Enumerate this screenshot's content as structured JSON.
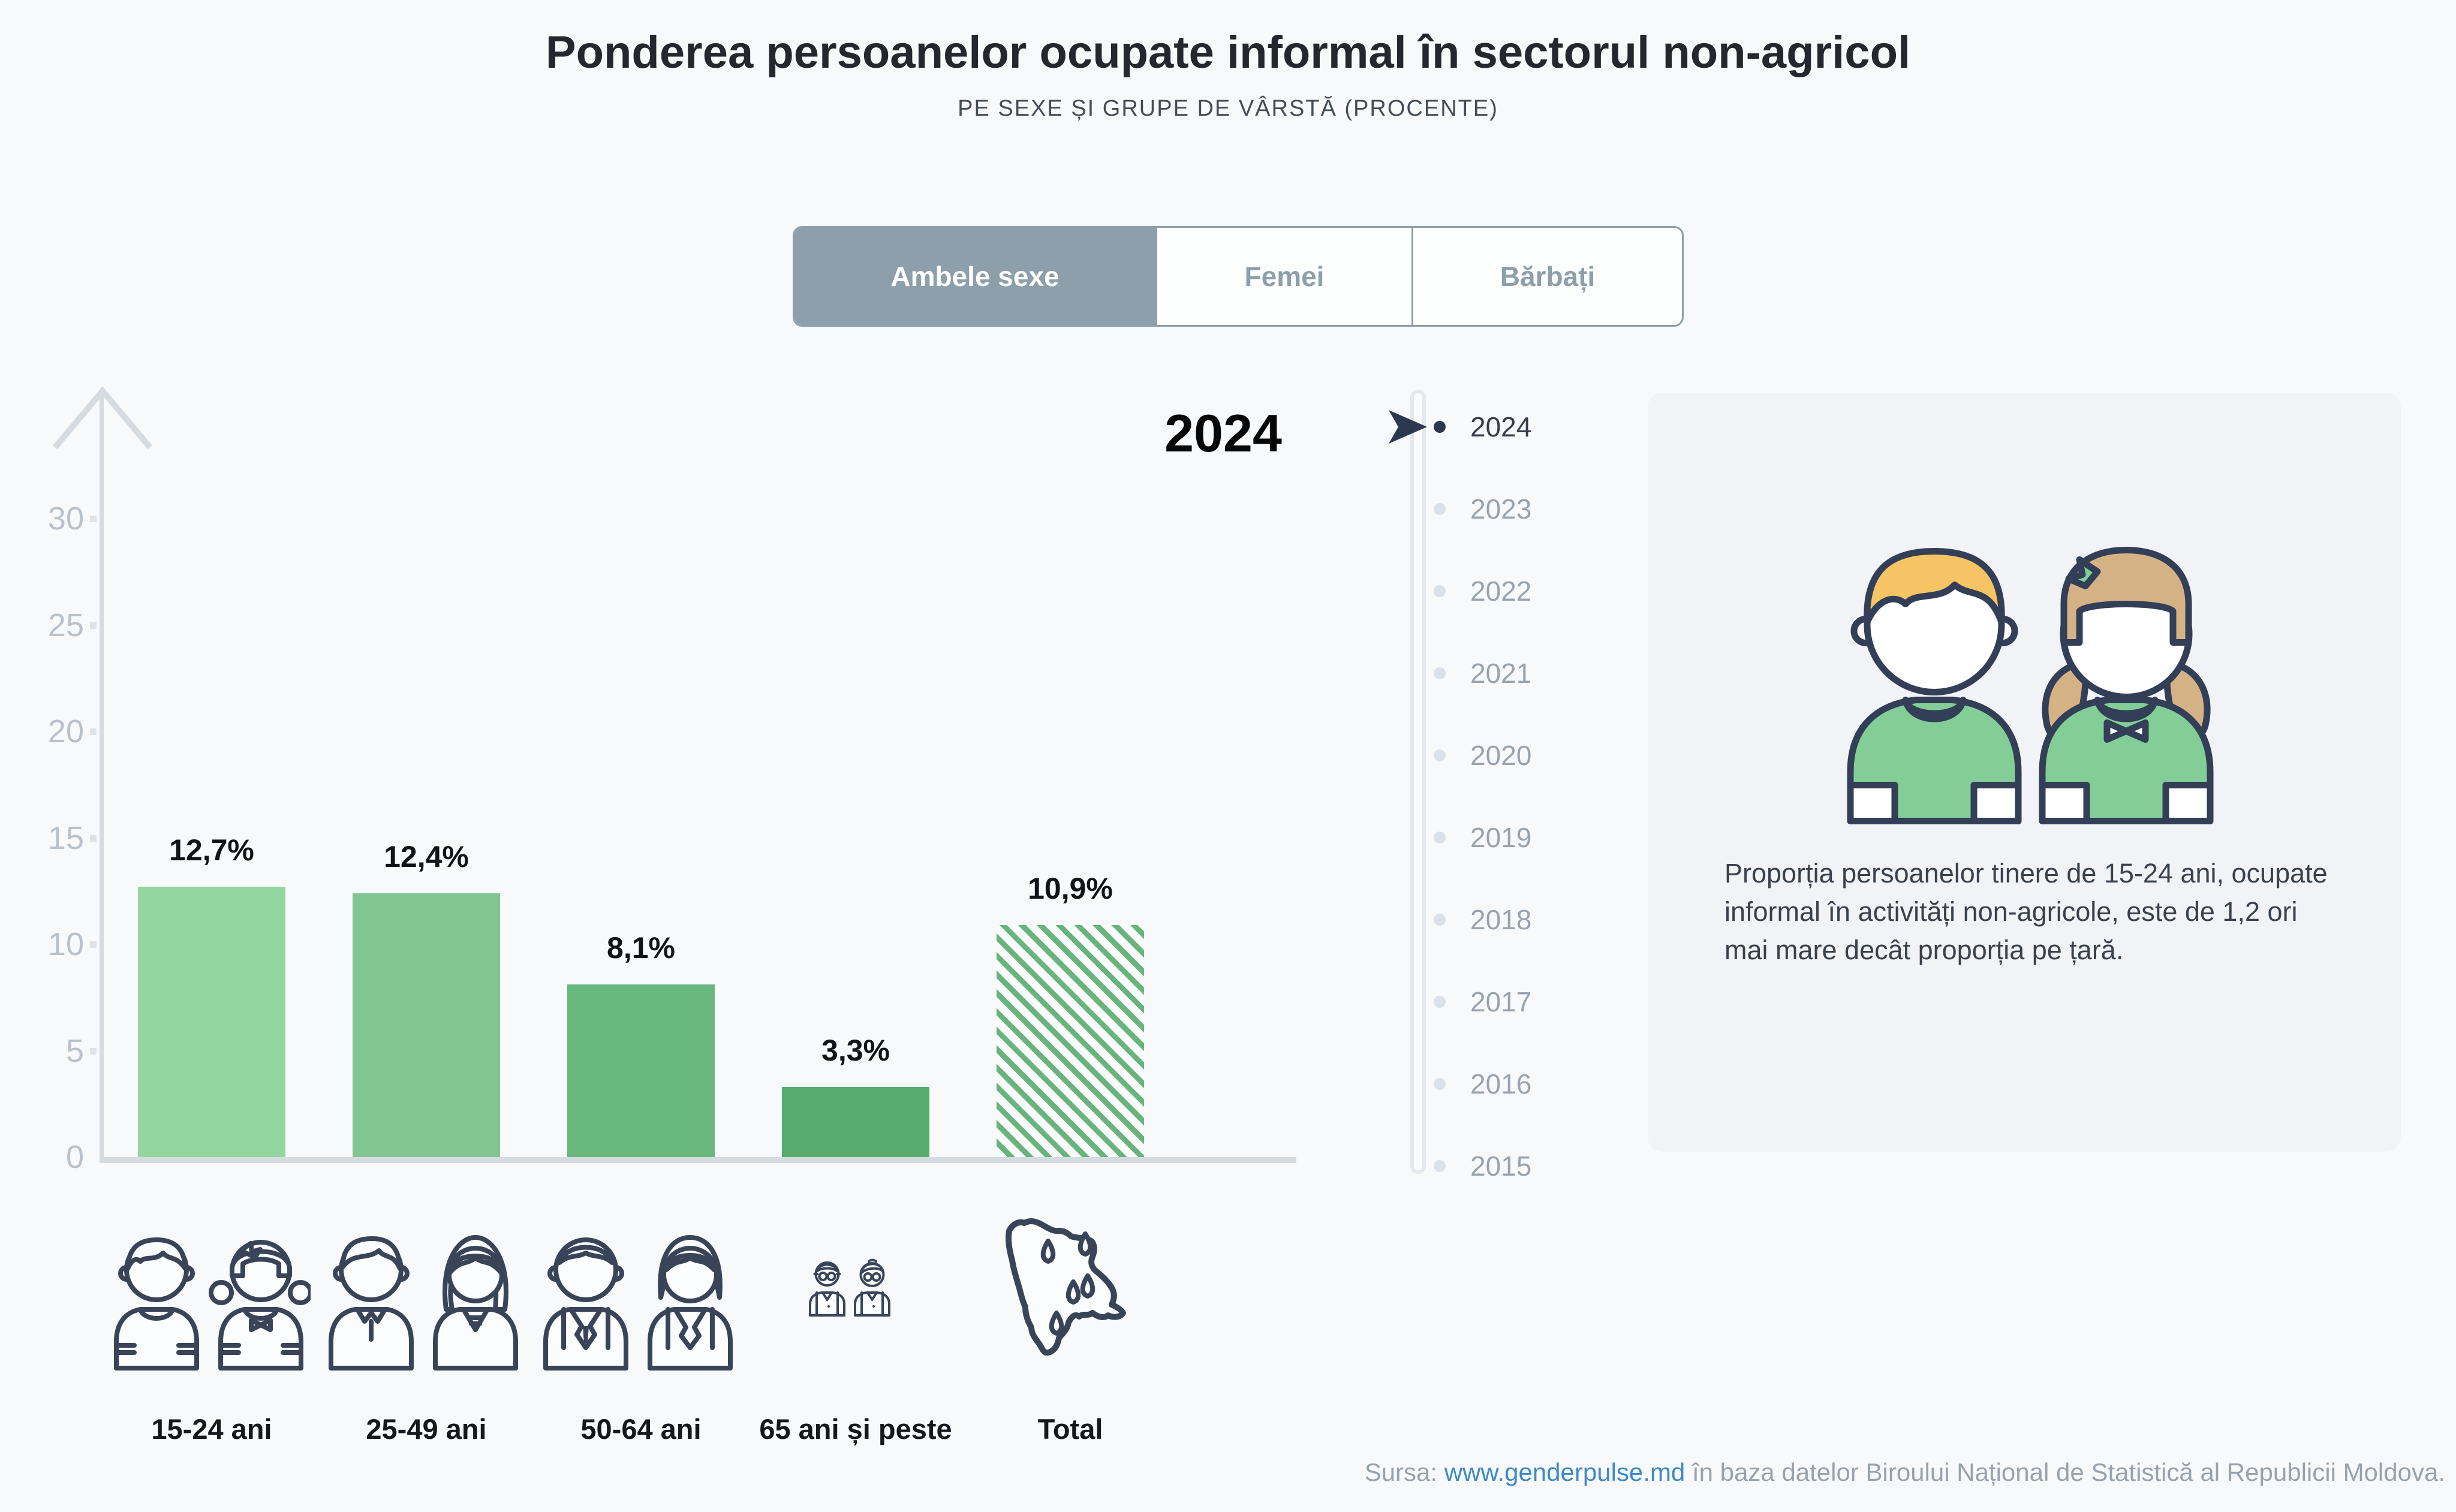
{
  "page": {
    "title": "Ponderea persoanelor ocupate informal în sectorul non-agricol",
    "subtitle": "PE SEXE ȘI GRUPE DE VÂRSTĂ (PROCENTE)"
  },
  "tabs": [
    {
      "label": "Ambele sexe",
      "selected": true
    },
    {
      "label": "Femei",
      "selected": false
    },
    {
      "label": "Bărbați",
      "selected": false
    }
  ],
  "year_display": "2024",
  "timeline": {
    "years": [
      "2024",
      "2023",
      "2022",
      "2021",
      "2020",
      "2019",
      "2018",
      "2017",
      "2016",
      "2015"
    ],
    "selected_year": "2024"
  },
  "chart_data": {
    "type": "bar",
    "title": "Ponderea persoanelor ocupate informal în sectorul non-agricol",
    "series_name": "Ambele sexe",
    "year": "2024",
    "categories": [
      "15-24 ani",
      "25-49 ani",
      "50-64 ani",
      "65 ani și peste",
      "Total"
    ],
    "values": [
      12.7,
      12.4,
      8.1,
      3.3,
      10.9
    ],
    "value_labels": [
      "12,7%",
      "12,4%",
      "8,1%",
      "3,3%",
      "10,9%"
    ],
    "bar_styles": [
      "solid",
      "solid",
      "solid",
      "solid",
      "hatched"
    ],
    "bar_colors": [
      "#94d6a0",
      "#81c593",
      "#69b87d",
      "#58ac6d",
      "#68b47c"
    ],
    "xlabel": "",
    "ylabel": "",
    "ylim": [
      0,
      30
    ],
    "yticks": [
      0,
      5,
      10,
      15,
      20,
      25,
      30
    ],
    "grid": false,
    "legend_position": "none"
  },
  "icons": [
    "young-pair-icon",
    "adult-pair-icon",
    "mature-pair-icon",
    "elderly-pair-icon",
    "moldova-map-icon"
  ],
  "infocard": {
    "text": "Proporția persoanelor tinere de 15-24 ani, ocupate informal în activități non-agricole, este de 1,2 ori mai mare decât proporția pe țară."
  },
  "footer": {
    "prefix": "Sursa: ",
    "link": "www.genderpulse.md",
    "suffix": " în baza datelor Biroului Național de Statistică al Republicii Moldova."
  },
  "colors": {
    "background": "#f8f9fa",
    "card_background": "#f1f3f6",
    "tab_selected_bg": "#8d9fab",
    "tab_selected_text": "#ffffff",
    "axis": "#d5dbe1",
    "tick_text": "#b9c1ca",
    "muted_text": "#98a2ac",
    "link": "#3d89c8",
    "outline_navy": "#3a4459",
    "timeline_selected": "#2c3850",
    "hatch_green": "#68b47c"
  }
}
